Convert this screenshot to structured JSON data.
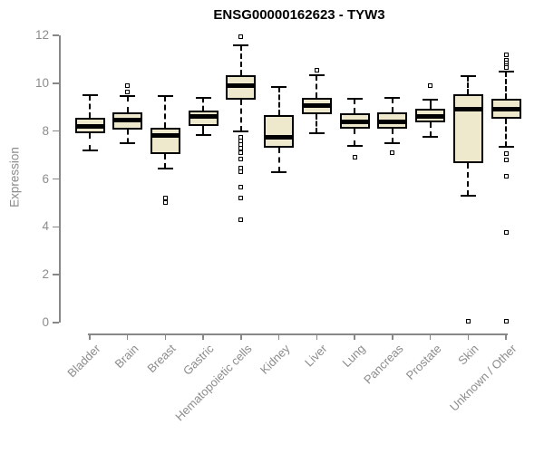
{
  "chart_data": {
    "type": "boxplot",
    "title": "ENSG00000162623 - TYW3",
    "ylabel": "Expression",
    "xlabel": "",
    "ylim": [
      0,
      12
    ],
    "yticks": [
      0,
      2,
      4,
      6,
      8,
      10,
      12
    ],
    "grid": false,
    "legend": "none",
    "categories": [
      "Bladder",
      "Brain",
      "Breast",
      "Gastric",
      "Hematopoietic cells",
      "Kidney",
      "Liver",
      "Lung",
      "Pancreas",
      "Prostate",
      "Skin",
      "Unknown / Other"
    ],
    "series": [
      {
        "category": "Bladder",
        "whisker_low": 7.2,
        "q1": 7.9,
        "median": 8.2,
        "q3": 8.55,
        "whisker_high": 9.5,
        "outliers": []
      },
      {
        "category": "Brain",
        "whisker_low": 7.5,
        "q1": 8.05,
        "median": 8.45,
        "q3": 8.8,
        "whisker_high": 9.45,
        "outliers": [
          9.65,
          9.9
        ]
      },
      {
        "category": "Breast",
        "whisker_low": 6.45,
        "q1": 7.05,
        "median": 7.8,
        "q3": 8.15,
        "whisker_high": 9.45,
        "outliers": [
          5.2,
          5.0
        ]
      },
      {
        "category": "Gastric",
        "whisker_low": 7.85,
        "q1": 8.2,
        "median": 8.6,
        "q3": 8.85,
        "whisker_high": 9.4,
        "outliers": []
      },
      {
        "category": "Hematopoietic cells",
        "whisker_low": 8.0,
        "q1": 9.3,
        "median": 9.9,
        "q3": 10.35,
        "whisker_high": 11.6,
        "outliers": [
          11.95,
          7.75,
          7.6,
          7.45,
          7.3,
          7.1,
          6.85,
          6.45,
          6.3,
          5.65,
          5.2,
          4.3
        ]
      },
      {
        "category": "Kidney",
        "whisker_low": 6.3,
        "q1": 7.3,
        "median": 7.75,
        "q3": 8.65,
        "whisker_high": 9.85,
        "outliers": []
      },
      {
        "category": "Liver",
        "whisker_low": 7.9,
        "q1": 8.7,
        "median": 9.05,
        "q3": 9.4,
        "whisker_high": 10.35,
        "outliers": [
          10.55
        ]
      },
      {
        "category": "Lung",
        "whisker_low": 7.4,
        "q1": 8.1,
        "median": 8.4,
        "q3": 8.75,
        "whisker_high": 9.35,
        "outliers": [
          6.9
        ]
      },
      {
        "category": "Pancreas",
        "whisker_low": 7.5,
        "q1": 8.1,
        "median": 8.4,
        "q3": 8.8,
        "whisker_high": 9.4,
        "outliers": [
          7.1
        ]
      },
      {
        "category": "Prostate",
        "whisker_low": 7.75,
        "q1": 8.35,
        "median": 8.6,
        "q3": 8.95,
        "whisker_high": 9.3,
        "outliers": [
          9.9
        ]
      },
      {
        "category": "Skin",
        "whisker_low": 5.3,
        "q1": 6.65,
        "median": 8.9,
        "q3": 9.55,
        "whisker_high": 10.3,
        "outliers": [
          0.05
        ]
      },
      {
        "category": "Unknown / Other",
        "whisker_low": 7.35,
        "q1": 8.5,
        "median": 8.9,
        "q3": 9.35,
        "whisker_high": 10.5,
        "outliers": [
          11.2,
          10.95,
          10.85,
          10.75,
          10.65,
          7.05,
          6.8,
          6.1,
          3.75,
          0.05
        ]
      }
    ],
    "colors": {
      "box_fill": "#EEE8CD",
      "box_border": "#000000",
      "median": "#000000",
      "axis": "#888888",
      "tick_label": "#8C8C8C",
      "title": "#000000",
      "background": "#FFFFFF"
    }
  }
}
